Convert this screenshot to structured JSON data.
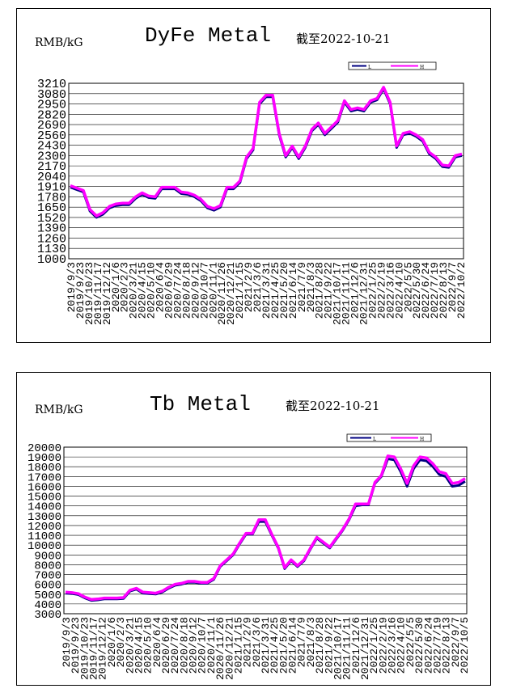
{
  "charts": [
    {
      "unit": "RMB/kG",
      "title": "DyFe Metal",
      "date_note": "截至2022-10-21",
      "legend": [
        "L",
        "H"
      ],
      "colors": {
        "low": "#000080",
        "high": "#ff00ff"
      }
    },
    {
      "unit": "RMB/kG",
      "title": "Tb Metal",
      "date_note": "截至2022-10-21",
      "legend": [
        "L",
        "H"
      ],
      "colors": {
        "low": "#000080",
        "high": "#ff00ff"
      }
    }
  ],
  "chart_data": [
    {
      "type": "line",
      "title": "DyFe Metal",
      "ylabel": "RMB/kG",
      "ylim": [
        1000,
        3210
      ],
      "yticks": [
        1000,
        1130,
        1260,
        1390,
        1520,
        1650,
        1780,
        1910,
        2040,
        2170,
        2300,
        2430,
        2560,
        2690,
        2820,
        2950,
        3080,
        3210
      ],
      "grid": true,
      "legend_position": "top-right",
      "xticks": [
        "2019/9/3",
        "2019/9/23",
        "2019/10/23",
        "2019/11/17",
        "2019/12/12",
        "2020/1/6",
        "2020/2/3",
        "2020/3/21",
        "2020/4/15",
        "2020/5/10",
        "2020/6/4",
        "2020/6/29",
        "2020/7/24",
        "2020/8/18",
        "2020/9/12",
        "2020/10/7",
        "2020/11/1",
        "2020/11/26",
        "2020/12/21",
        "2021/1/15",
        "2021/2/9",
        "2021/3/6",
        "2021/3/31",
        "2021/4/25",
        "2021/5/20",
        "2021/6/14",
        "2021/7/9",
        "2021/8/3",
        "2021/8/28",
        "2021/9/22",
        "2021/10/17",
        "2021/11/11",
        "2021/12/6",
        "2021/12/31",
        "2022/1/25",
        "2022/2/19",
        "2022/3/16",
        "2022/4/10",
        "2022/5/5",
        "2022/5/30",
        "2022/6/24",
        "2022/7/19",
        "2022/8/13",
        "2022/9/7",
        "2022/10/2"
      ],
      "series": [
        {
          "name": "L",
          "values": [
            1900,
            1870,
            1840,
            1600,
            1520,
            1560,
            1640,
            1670,
            1680,
            1680,
            1760,
            1810,
            1770,
            1760,
            1880,
            1880,
            1880,
            1820,
            1810,
            1780,
            1730,
            1640,
            1610,
            1650,
            1880,
            1880,
            1960,
            2260,
            2370,
            2950,
            3040,
            3040,
            2560,
            2280,
            2400,
            2260,
            2400,
            2610,
            2690,
            2560,
            2640,
            2720,
            2970,
            2860,
            2880,
            2860,
            2970,
            3000,
            3140,
            2950,
            2400,
            2560,
            2580,
            2540,
            2480,
            2320,
            2260,
            2160,
            2150,
            2280,
            2300
          ]
        },
        {
          "name": "H",
          "values": [
            1920,
            1890,
            1860,
            1620,
            1540,
            1580,
            1660,
            1690,
            1700,
            1700,
            1780,
            1830,
            1790,
            1780,
            1900,
            1900,
            1900,
            1840,
            1830,
            1800,
            1750,
            1660,
            1630,
            1670,
            1900,
            1900,
            1980,
            2280,
            2390,
            2970,
            3060,
            3060,
            2580,
            2300,
            2420,
            2280,
            2420,
            2630,
            2710,
            2580,
            2660,
            2740,
            2990,
            2880,
            2900,
            2880,
            2990,
            3020,
            3160,
            2970,
            2420,
            2580,
            2600,
            2560,
            2500,
            2340,
            2280,
            2180,
            2170,
            2300,
            2320
          ]
        }
      ]
    },
    {
      "type": "line",
      "title": "Tb Metal",
      "ylabel": "RMB/kG",
      "ylim": [
        3000,
        20000
      ],
      "yticks": [
        3000,
        4000,
        5000,
        6000,
        7000,
        8000,
        9000,
        10000,
        11000,
        12000,
        13000,
        14000,
        15000,
        16000,
        17000,
        18000,
        19000,
        20000
      ],
      "grid": true,
      "legend_position": "top-right",
      "xticks": [
        "2019/9/3",
        "2019/9/23",
        "2019/10/23",
        "2019/11/17",
        "2019/12/12",
        "2020/1/6",
        "2020/2/3",
        "2020/3/21",
        "2020/4/15",
        "2020/5/10",
        "2020/6/4",
        "2020/6/29",
        "2020/7/24",
        "2020/8/18",
        "2020/9/12",
        "2020/10/7",
        "2020/11/1",
        "2020/11/26",
        "2020/12/21",
        "2021/1/15",
        "2021/2/9",
        "2021/3/6",
        "2021/3/31",
        "2021/4/25",
        "2021/5/20",
        "2021/6/14",
        "2021/7/9",
        "2021/8/3",
        "2021/8/28",
        "2021/9/22",
        "2021/10/17",
        "2021/11/11",
        "2021/12/6",
        "2021/12/31",
        "2022/1/25",
        "2022/2/19",
        "2022/3/16",
        "2022/4/10",
        "2022/5/5",
        "2022/5/30",
        "2022/6/24",
        "2022/7/19",
        "2022/8/13",
        "2022/9/7",
        "2022/10/5"
      ],
      "series": [
        {
          "name": "L",
          "values": [
            5100,
            5050,
            4950,
            4600,
            4350,
            4400,
            4500,
            4500,
            4500,
            4550,
            5300,
            5500,
            5100,
            5050,
            5000,
            5200,
            5600,
            5900,
            6000,
            6200,
            6200,
            6100,
            6100,
            6500,
            7800,
            8400,
            9000,
            10100,
            11100,
            11100,
            12400,
            12400,
            11000,
            9700,
            7600,
            8400,
            7800,
            8400,
            9600,
            10700,
            10200,
            9700,
            10600,
            11500,
            12600,
            14000,
            14100,
            14100,
            16300,
            17000,
            18800,
            18700,
            17500,
            16000,
            17800,
            18700,
            18600,
            18000,
            17200,
            17000,
            16000,
            16100,
            16500
          ]
        },
        {
          "name": "H",
          "values": [
            5200,
            5150,
            5050,
            4700,
            4450,
            4500,
            4600,
            4600,
            4600,
            4650,
            5400,
            5600,
            5200,
            5150,
            5100,
            5300,
            5700,
            6000,
            6100,
            6300,
            6300,
            6200,
            6200,
            6600,
            7900,
            8500,
            9100,
            10200,
            11200,
            11200,
            12600,
            12600,
            11100,
            9800,
            7700,
            8500,
            7900,
            8500,
            9700,
            10800,
            10300,
            9800,
            10700,
            11600,
            12700,
            14200,
            14200,
            14200,
            16400,
            17100,
            19100,
            19000,
            17800,
            16300,
            18100,
            19000,
            18900,
            18300,
            17500,
            17300,
            16300,
            16400,
            16800
          ]
        }
      ]
    }
  ]
}
